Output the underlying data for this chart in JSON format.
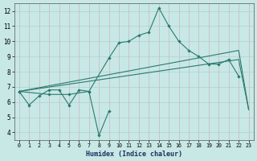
{
  "xlabel": "Humidex (Indice chaleur)",
  "xlim": [
    -0.5,
    23.5
  ],
  "ylim": [
    3.5,
    12.5
  ],
  "xticks": [
    0,
    1,
    2,
    3,
    4,
    5,
    6,
    7,
    8,
    9,
    10,
    11,
    12,
    13,
    14,
    15,
    16,
    17,
    18,
    19,
    20,
    21,
    22,
    23
  ],
  "yticks": [
    4,
    5,
    6,
    7,
    8,
    9,
    10,
    11,
    12
  ],
  "bg_color": "#c8e8e5",
  "grid_color_v": "#d4b8c0",
  "grid_color_h": "#b8d4d0",
  "line_color": "#2a7a6f",
  "marker_size": 2.2,
  "lw": 0.8,
  "line1_x": [
    0,
    1,
    2,
    3,
    4,
    5,
    6,
    7,
    8,
    9
  ],
  "line1_y": [
    6.7,
    5.8,
    6.4,
    6.8,
    6.8,
    5.8,
    6.8,
    6.7,
    3.8,
    5.4
  ],
  "line2_x": [
    0,
    3,
    5,
    7,
    9,
    10,
    11,
    12,
    13,
    14,
    15,
    16,
    17,
    18,
    19,
    20,
    21,
    22
  ],
  "line2_y": [
    6.7,
    6.5,
    6.5,
    6.7,
    8.9,
    9.9,
    10.0,
    10.4,
    10.6,
    12.2,
    11.0,
    10.0,
    9.4,
    9.0,
    8.5,
    8.5,
    8.8,
    7.7
  ],
  "line3_x": [
    0,
    22,
    23
  ],
  "line3_y": [
    6.7,
    9.4,
    5.5
  ],
  "line4_x": [
    0,
    22,
    23
  ],
  "line4_y": [
    6.7,
    8.8,
    5.5
  ]
}
